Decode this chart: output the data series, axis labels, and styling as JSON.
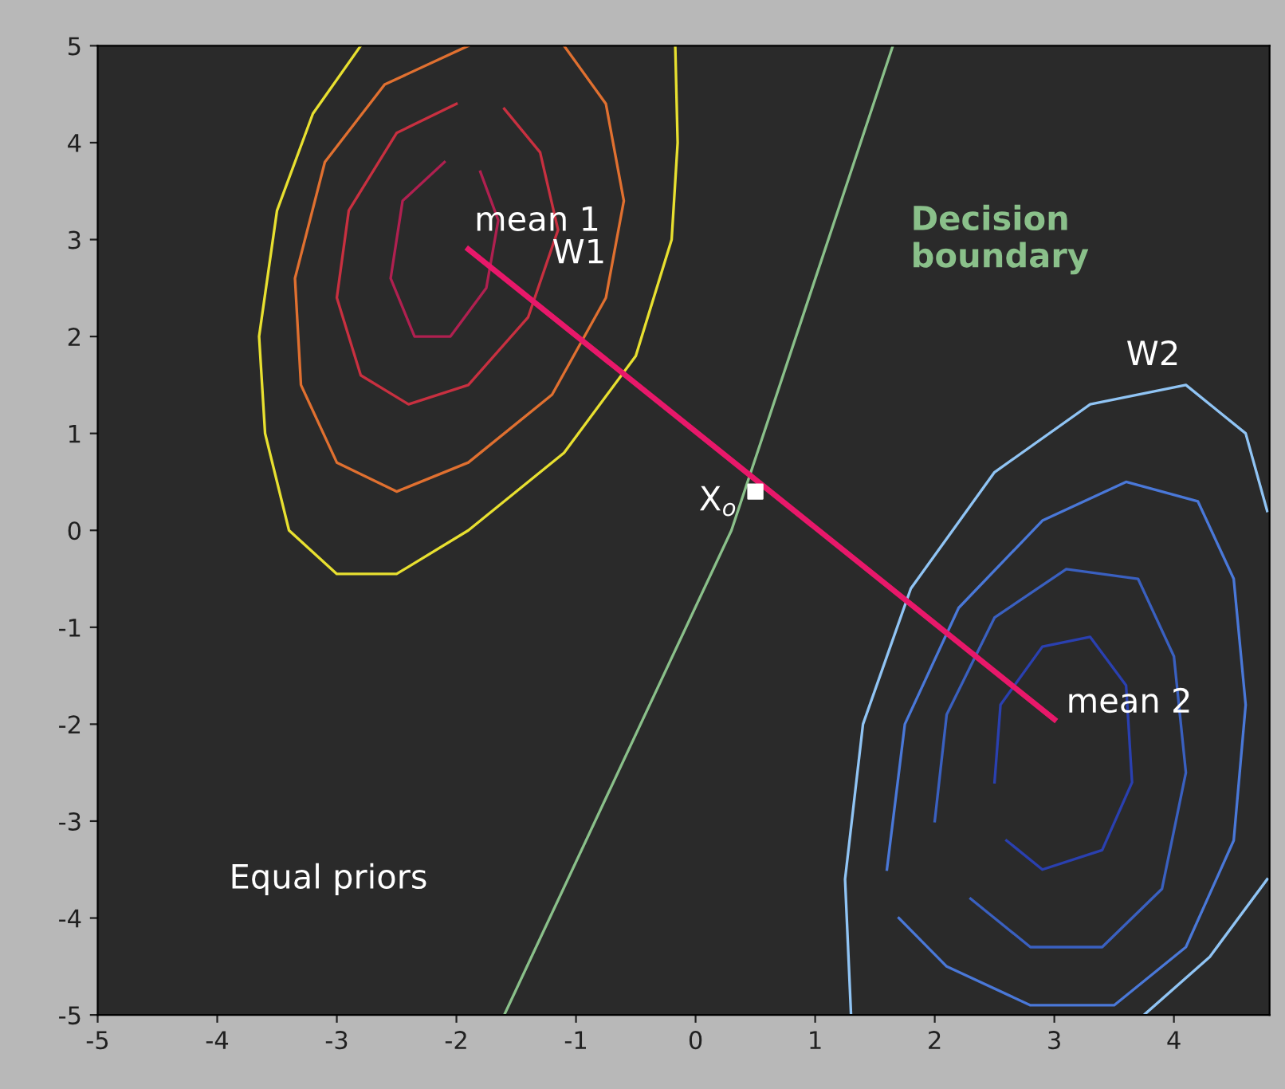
{
  "chart_data": {
    "type": "line",
    "xlim": [
      -5,
      4.8
    ],
    "ylim": [
      -5,
      5
    ],
    "xticks": [
      -5,
      -4,
      -3,
      -2,
      -1,
      0,
      1,
      2,
      3,
      4
    ],
    "yticks": [
      -5,
      -4,
      -3,
      -2,
      -1,
      0,
      1,
      2,
      3,
      4,
      5
    ],
    "grid": false,
    "legend": false,
    "marker": "none",
    "line_style": "solid",
    "series": [
      {
        "color": "#e8e030",
        "x": [
          -2.8,
          -3.2,
          -3.5,
          -3.65,
          -3.6,
          -3.4,
          -3.0,
          -2.5,
          -1.9,
          -1.1,
          -0.5,
          -0.2,
          -0.15,
          -0.17
        ],
        "values": [
          5.0,
          4.3,
          3.3,
          2.0,
          1.0,
          0.0,
          -0.45,
          -0.45,
          0.0,
          0.8,
          1.8,
          3.0,
          4.0,
          5.0
        ]
      },
      {
        "color": "#e07030",
        "x": [
          -1.9,
          -2.6,
          -3.1,
          -3.35,
          -3.3,
          -3.0,
          -2.5,
          -1.9,
          -1.2,
          -0.75,
          -0.6,
          -0.75,
          -1.1
        ],
        "values": [
          5.0,
          4.6,
          3.8,
          2.6,
          1.5,
          0.7,
          0.4,
          0.7,
          1.4,
          2.4,
          3.4,
          4.4,
          5.0
        ]
      },
      {
        "color": "#c83040",
        "x": [
          -2.0,
          -2.5,
          -2.9,
          -3.0,
          -2.8,
          -2.4,
          -1.9,
          -1.4,
          -1.15,
          -1.3,
          -1.6
        ],
        "values": [
          4.4,
          4.1,
          3.3,
          2.4,
          1.6,
          1.3,
          1.5,
          2.2,
          3.1,
          3.9,
          4.35
        ]
      },
      {
        "color": "#b02050",
        "x": [
          -2.1,
          -2.45,
          -2.55,
          -2.35,
          -2.05,
          -1.75,
          -1.65,
          -1.8
        ],
        "values": [
          3.8,
          3.4,
          2.6,
          2.0,
          2.0,
          2.5,
          3.2,
          3.7
        ]
      },
      {
        "color": "#90c4f4",
        "x": [
          4.78,
          4.3,
          3.75,
          2.5,
          1.3,
          1.25,
          1.4,
          1.8,
          2.5,
          3.3,
          4.1,
          4.6,
          4.78
        ],
        "values": [
          -3.6,
          -4.4,
          -5.0,
          null,
          -5.0,
          -3.6,
          -2.0,
          -0.6,
          0.6,
          1.3,
          1.5,
          1.0,
          0.2
        ]
      },
      {
        "color": "#4a78d8",
        "x": [
          1.6,
          1.75,
          2.2,
          2.9,
          3.6,
          4.2,
          4.5,
          4.6,
          4.5,
          4.1,
          3.5,
          2.8,
          2.1,
          1.7
        ],
        "values": [
          -3.5,
          -2.0,
          -0.8,
          0.1,
          0.5,
          0.3,
          -0.5,
          -1.8,
          -3.2,
          -4.3,
          -4.9,
          -4.9,
          -4.5,
          -4.0
        ]
      },
      {
        "color": "#3a60c0",
        "x": [
          2.0,
          2.1,
          2.5,
          3.1,
          3.7,
          4.0,
          4.1,
          3.9,
          3.4,
          2.8,
          2.3
        ],
        "values": [
          -3.0,
          -1.9,
          -0.9,
          -0.4,
          -0.5,
          -1.3,
          -2.5,
          -3.7,
          -4.3,
          -4.3,
          -3.8
        ]
      },
      {
        "color": "#2a40b0",
        "x": [
          2.5,
          2.55,
          2.9,
          3.3,
          3.6,
          3.65,
          3.4,
          2.9,
          2.6
        ],
        "values": [
          -2.6,
          -1.8,
          -1.2,
          -1.1,
          -1.6,
          -2.6,
          -3.3,
          -3.5,
          -3.2
        ]
      },
      {
        "name": "Decision boundary",
        "color": "#8ac08a",
        "x": [
          -1.6,
          0.3,
          1.65
        ],
        "values": [
          -5.0,
          0.0,
          5.0
        ]
      },
      {
        "color": "#e8186a",
        "x": [
          -1.9,
          3.0
        ],
        "values": [
          2.9,
          -1.95
        ]
      },
      {
        "type": "scatter",
        "marker": "square",
        "color": "#ffffff",
        "x": [
          0.5
        ],
        "values": [
          0.4
        ]
      }
    ],
    "annotations": [
      {
        "text": "mean 1",
        "x": -1.9,
        "y": 2.9
      },
      "W1",
      "W2",
      {
        "text": "X$_{o}$",
        "x": 0.5,
        "y": 0.4
      },
      {
        "text": "mean 2",
        "x": 3.0,
        "y": -1.95
      },
      "Equal priors"
    ]
  }
}
